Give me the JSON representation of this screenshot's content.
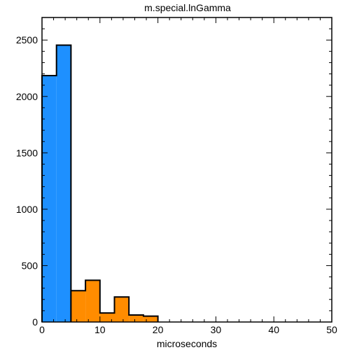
{
  "chart_data": {
    "type": "bar",
    "title": "m.special.lnGamma",
    "xlabel": "microseconds",
    "ylabel": "",
    "xlim": [
      0,
      50
    ],
    "ylim": [
      0,
      2700
    ],
    "grid": false,
    "bin_width": 2.5,
    "x_ticks": [
      0,
      10,
      20,
      30,
      40,
      50
    ],
    "y_ticks": [
      0,
      500,
      1000,
      1500,
      2000,
      2500
    ],
    "series": [
      {
        "color": "#1e90ff",
        "bin_start": [
          0,
          2.5
        ],
        "values": [
          2185,
          2455
        ]
      },
      {
        "color": "#ff8c00",
        "bin_start": [
          5,
          7.5,
          10,
          12.5,
          15,
          17.5
        ],
        "values": [
          278,
          370,
          80,
          222,
          62,
          52
        ]
      }
    ]
  }
}
